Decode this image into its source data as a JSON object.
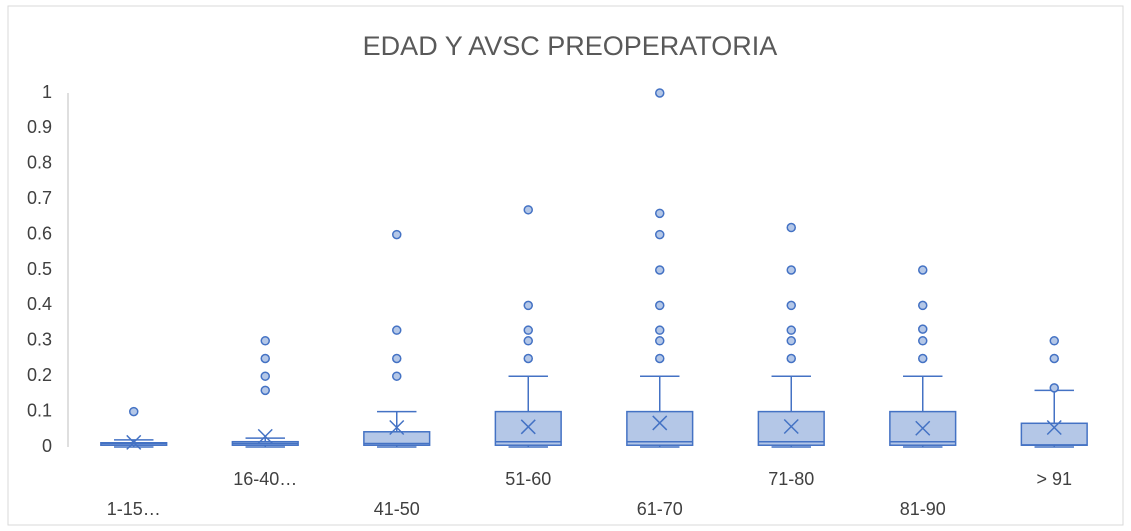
{
  "chart_data": {
    "type": "box",
    "title": "EDAD Y AVSC PREOPERATORIA",
    "categories": [
      "1-15…",
      "16-40…",
      "41-50",
      "51-60",
      "61-70",
      "71-80",
      "81-90",
      "> 91"
    ],
    "boxes": [
      {
        "min": 0,
        "q1": 0.005,
        "median": 0.01,
        "q3": 0.012,
        "max": 0.02,
        "mean": 0.013,
        "outliers": [
          0.1
        ]
      },
      {
        "min": 0,
        "q1": 0.005,
        "median": 0.01,
        "q3": 0.015,
        "max": 0.025,
        "mean": 0.03,
        "outliers": [
          0.16,
          0.2,
          0.25,
          0.3
        ]
      },
      {
        "min": 0,
        "q1": 0.005,
        "median": 0.01,
        "q3": 0.043,
        "max": 0.1,
        "mean": 0.055,
        "outliers": [
          0.2,
          0.25,
          0.33,
          0.6
        ]
      },
      {
        "min": 0,
        "q1": 0.005,
        "median": 0.015,
        "q3": 0.1,
        "max": 0.2,
        "mean": 0.057,
        "outliers": [
          0.25,
          0.3,
          0.33,
          0.4,
          0.67
        ]
      },
      {
        "min": 0,
        "q1": 0.005,
        "median": 0.015,
        "q3": 0.1,
        "max": 0.2,
        "mean": 0.068,
        "outliers": [
          0.25,
          0.3,
          0.33,
          0.4,
          0.5,
          0.6,
          0.66,
          1
        ]
      },
      {
        "min": 0,
        "q1": 0.005,
        "median": 0.015,
        "q3": 0.1,
        "max": 0.2,
        "mean": 0.058,
        "outliers": [
          0.25,
          0.3,
          0.33,
          0.4,
          0.5,
          0.62
        ]
      },
      {
        "min": 0,
        "q1": 0.005,
        "median": 0.015,
        "q3": 0.1,
        "max": 0.2,
        "mean": 0.053,
        "outliers": [
          0.25,
          0.3,
          0.333,
          0.4,
          0.5
        ]
      },
      {
        "min": 0,
        "q1": 0.005,
        "median": 0.006,
        "q3": 0.067,
        "max": 0.16,
        "mean": 0.055,
        "outliers": [
          0.167,
          0.25,
          0.3
        ]
      }
    ],
    "color": "#4472c4",
    "fill_color": "#b4c7e7",
    "ylim": [
      0,
      1
    ],
    "yticks": [
      0,
      0.1,
      0.2,
      0.3,
      0.4,
      0.5,
      0.6,
      0.7,
      0.8,
      0.9,
      1
    ],
    "grid": false
  }
}
